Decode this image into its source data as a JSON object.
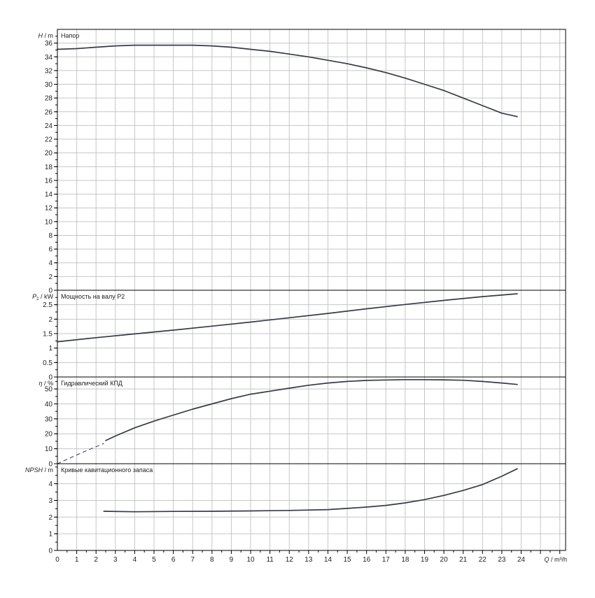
{
  "chart_data": [
    {
      "type": "line",
      "title": "Напор",
      "ylabel_symbol": "H",
      "ylabel_unit": "/ m",
      "ylim": [
        0,
        38
      ],
      "yticks": [
        0,
        2,
        4,
        6,
        8,
        10,
        12,
        14,
        16,
        18,
        20,
        22,
        24,
        26,
        28,
        30,
        32,
        34,
        36
      ],
      "series": [
        {
          "x": [
            0,
            1,
            2,
            3,
            4,
            5,
            6,
            7,
            8,
            9,
            10,
            11,
            12,
            13,
            14,
            15,
            16,
            17,
            18,
            19,
            20,
            21,
            22,
            23,
            23.8
          ],
          "y": [
            35.1,
            35.2,
            35.4,
            35.6,
            35.7,
            35.7,
            35.7,
            35.7,
            35.6,
            35.4,
            35.1,
            34.8,
            34.4,
            34.0,
            33.5,
            33.0,
            32.4,
            31.7,
            30.9,
            30.0,
            29.1,
            28.0,
            26.9,
            25.8,
            25.3
          ]
        }
      ]
    },
    {
      "type": "line",
      "title": "Мощность на валу P2",
      "ylabel_symbol": "P",
      "ylabel_sub": "2",
      "ylabel_unit": "/ kW",
      "ylim": [
        0,
        3.0
      ],
      "yticks": [
        0,
        0.5,
        1,
        1.5,
        2,
        2.5
      ],
      "ytick_labels": [
        "0",
        "0.5",
        "1",
        "1.5",
        "2",
        "2.5"
      ],
      "series": [
        {
          "x": [
            0,
            2,
            4,
            6,
            8,
            10,
            12,
            14,
            16,
            18,
            20,
            22,
            23.8
          ],
          "y": [
            1.22,
            1.36,
            1.49,
            1.62,
            1.76,
            1.9,
            2.05,
            2.2,
            2.36,
            2.51,
            2.65,
            2.78,
            2.88
          ]
        }
      ]
    },
    {
      "type": "line",
      "title": "Гидравлический КПД",
      "ylabel_symbol": "η",
      "ylabel_unit": "/ %",
      "ylim": [
        0,
        58
      ],
      "yticks": [
        0,
        10,
        20,
        30,
        40,
        50
      ],
      "series": [
        {
          "style": "dashed",
          "x": [
            0,
            0.6,
            1.2,
            1.8,
            2.4
          ],
          "y": [
            0,
            3.5,
            7.0,
            10.3,
            13.5
          ]
        },
        {
          "style": "solid",
          "x": [
            2.5,
            3,
            4,
            5,
            6,
            7,
            8,
            9,
            10,
            11,
            12,
            13,
            14,
            15,
            16,
            17,
            18,
            19,
            20,
            21,
            22,
            23,
            23.8
          ],
          "y": [
            15.5,
            18.5,
            24.0,
            28.5,
            32.5,
            36.5,
            40.0,
            43.5,
            46.5,
            48.5,
            50.5,
            52.5,
            54.0,
            55.0,
            55.7,
            56.0,
            56.2,
            56.2,
            56.1,
            55.8,
            55.0,
            54.0,
            53.0
          ]
        }
      ]
    },
    {
      "type": "line",
      "title": "Кривые кавитационного запаса",
      "ylabel_symbol": "NPSH",
      "ylabel_unit": "/ m",
      "ylim": [
        0,
        5.2
      ],
      "yticks": [
        0,
        1,
        2,
        3,
        4
      ],
      "series": [
        {
          "x": [
            2.4,
            4,
            6,
            8,
            10,
            12,
            14,
            15,
            16,
            17,
            18,
            19,
            20,
            21,
            22,
            23,
            23.8
          ],
          "y": [
            2.35,
            2.32,
            2.34,
            2.35,
            2.37,
            2.4,
            2.45,
            2.52,
            2.6,
            2.7,
            2.85,
            3.05,
            3.3,
            3.6,
            3.95,
            4.45,
            4.9
          ]
        }
      ]
    }
  ],
  "x_axis": {
    "label_symbol": "Q",
    "label_unit": "/ m³/h",
    "xlim": [
      0,
      26.3
    ],
    "ticks": [
      0,
      1,
      2,
      3,
      4,
      5,
      6,
      7,
      8,
      9,
      10,
      11,
      12,
      13,
      14,
      15,
      16,
      17,
      18,
      19,
      20,
      21,
      22,
      23,
      24
    ]
  },
  "grid": true,
  "colors": {
    "curve": "#353b4a",
    "grid": "#c6c6c6",
    "frame": "#000000"
  }
}
